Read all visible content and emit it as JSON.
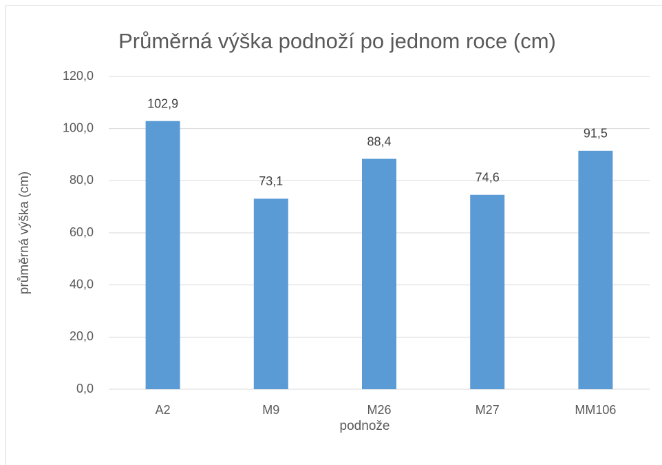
{
  "chart_data": {
    "type": "bar",
    "title": "Průměrná výška podnoží po jednom roce (cm)",
    "x_label": "podnože",
    "y_label": "průměrná výška (cm)",
    "categories": [
      "A2",
      "M9",
      "M26",
      "M27",
      "MM106"
    ],
    "values": [
      102.9,
      73.1,
      88.4,
      74.6,
      91.5
    ],
    "value_labels": [
      "102,9",
      "73,1",
      "88,4",
      "74,6",
      "91,5"
    ],
    "color": "#5b9bd5",
    "ylim": [
      0,
      120
    ],
    "yticks": [
      {
        "value": 0,
        "label": "0,0"
      },
      {
        "value": 20,
        "label": "20,0"
      },
      {
        "value": 40,
        "label": "40,0"
      },
      {
        "value": 60,
        "label": "60,0"
      },
      {
        "value": 80,
        "label": "80,0"
      },
      {
        "value": 100,
        "label": "100,0"
      },
      {
        "value": 120,
        "label": "120,0"
      }
    ],
    "grid": true
  }
}
